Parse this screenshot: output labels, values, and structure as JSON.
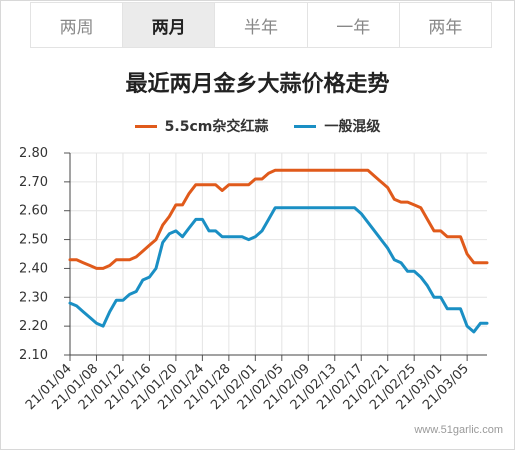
{
  "tabs": [
    {
      "label": "两周",
      "active": false
    },
    {
      "label": "两月",
      "active": true
    },
    {
      "label": "半年",
      "active": false
    },
    {
      "label": "一年",
      "active": false
    },
    {
      "label": "两年",
      "active": false
    }
  ],
  "watermark": "www.51garlic.com",
  "chart_data": {
    "type": "line",
    "title": "最近两月金乡大蒜价格走势",
    "xlabel": "",
    "ylabel": "",
    "ylim": [
      2.1,
      2.8
    ],
    "yticks": [
      "2.80",
      "2.70",
      "2.60",
      "2.50",
      "2.40",
      "2.30",
      "2.20",
      "2.10"
    ],
    "grid": true,
    "legend_position": "top",
    "x_tick_labels": [
      "21/01/04",
      "21/01/08",
      "21/01/12",
      "21/01/16",
      "21/01/20",
      "21/01/24",
      "21/01/28",
      "21/02/01",
      "21/02/05",
      "21/02/09",
      "21/02/13",
      "21/02/17",
      "21/02/21",
      "21/02/25",
      "21/03/01",
      "21/03/05"
    ],
    "x": [
      "21/01/04",
      "21/01/05",
      "21/01/06",
      "21/01/07",
      "21/01/08",
      "21/01/09",
      "21/01/10",
      "21/01/11",
      "21/01/12",
      "21/01/13",
      "21/01/14",
      "21/01/15",
      "21/01/16",
      "21/01/17",
      "21/01/18",
      "21/01/19",
      "21/01/20",
      "21/01/21",
      "21/01/22",
      "21/01/23",
      "21/01/24",
      "21/01/25",
      "21/01/26",
      "21/01/27",
      "21/01/28",
      "21/01/29",
      "21/01/30",
      "21/01/31",
      "21/02/01",
      "21/02/02",
      "21/02/03",
      "21/02/04",
      "21/02/05",
      "21/02/06",
      "21/02/07",
      "21/02/08",
      "21/02/09",
      "21/02/10",
      "21/02/11",
      "21/02/12",
      "21/02/13",
      "21/02/14",
      "21/02/15",
      "21/02/16",
      "21/02/17",
      "21/02/18",
      "21/02/19",
      "21/02/20",
      "21/02/21",
      "21/02/22",
      "21/02/23",
      "21/02/24",
      "21/02/25",
      "21/02/26",
      "21/02/27",
      "21/02/28",
      "21/03/01",
      "21/03/02",
      "21/03/03",
      "21/03/04",
      "21/03/05",
      "21/03/06",
      "21/03/07",
      "21/03/08"
    ],
    "series": [
      {
        "name": "5.5cm杂交红蒜",
        "color": "#e05a1b",
        "values": [
          2.43,
          2.43,
          2.42,
          2.41,
          2.4,
          2.4,
          2.41,
          2.43,
          2.43,
          2.43,
          2.44,
          2.46,
          2.48,
          2.5,
          2.55,
          2.58,
          2.62,
          2.62,
          2.66,
          2.69,
          2.69,
          2.69,
          2.69,
          2.67,
          2.69,
          2.69,
          2.69,
          2.69,
          2.71,
          2.71,
          2.73,
          2.74,
          2.74,
          2.74,
          2.74,
          2.74,
          2.74,
          2.74,
          2.74,
          2.74,
          2.74,
          2.74,
          2.74,
          2.74,
          2.74,
          2.74,
          2.72,
          2.7,
          2.68,
          2.64,
          2.63,
          2.63,
          2.62,
          2.61,
          2.57,
          2.53,
          2.53,
          2.51,
          2.51,
          2.51,
          2.45,
          2.42,
          2.42,
          2.42
        ]
      },
      {
        "name": "一般混级",
        "color": "#1a8fc4",
        "values": [
          2.28,
          2.27,
          2.25,
          2.23,
          2.21,
          2.2,
          2.25,
          2.29,
          2.29,
          2.31,
          2.32,
          2.36,
          2.37,
          2.4,
          2.49,
          2.52,
          2.53,
          2.51,
          2.54,
          2.57,
          2.57,
          2.53,
          2.53,
          2.51,
          2.51,
          2.51,
          2.51,
          2.5,
          2.51,
          2.53,
          2.57,
          2.61,
          2.61,
          2.61,
          2.61,
          2.61,
          2.61,
          2.61,
          2.61,
          2.61,
          2.61,
          2.61,
          2.61,
          2.61,
          2.59,
          2.56,
          2.53,
          2.5,
          2.47,
          2.43,
          2.42,
          2.39,
          2.39,
          2.37,
          2.34,
          2.3,
          2.3,
          2.26,
          2.26,
          2.26,
          2.2,
          2.18,
          2.21,
          2.21
        ]
      }
    ]
  }
}
